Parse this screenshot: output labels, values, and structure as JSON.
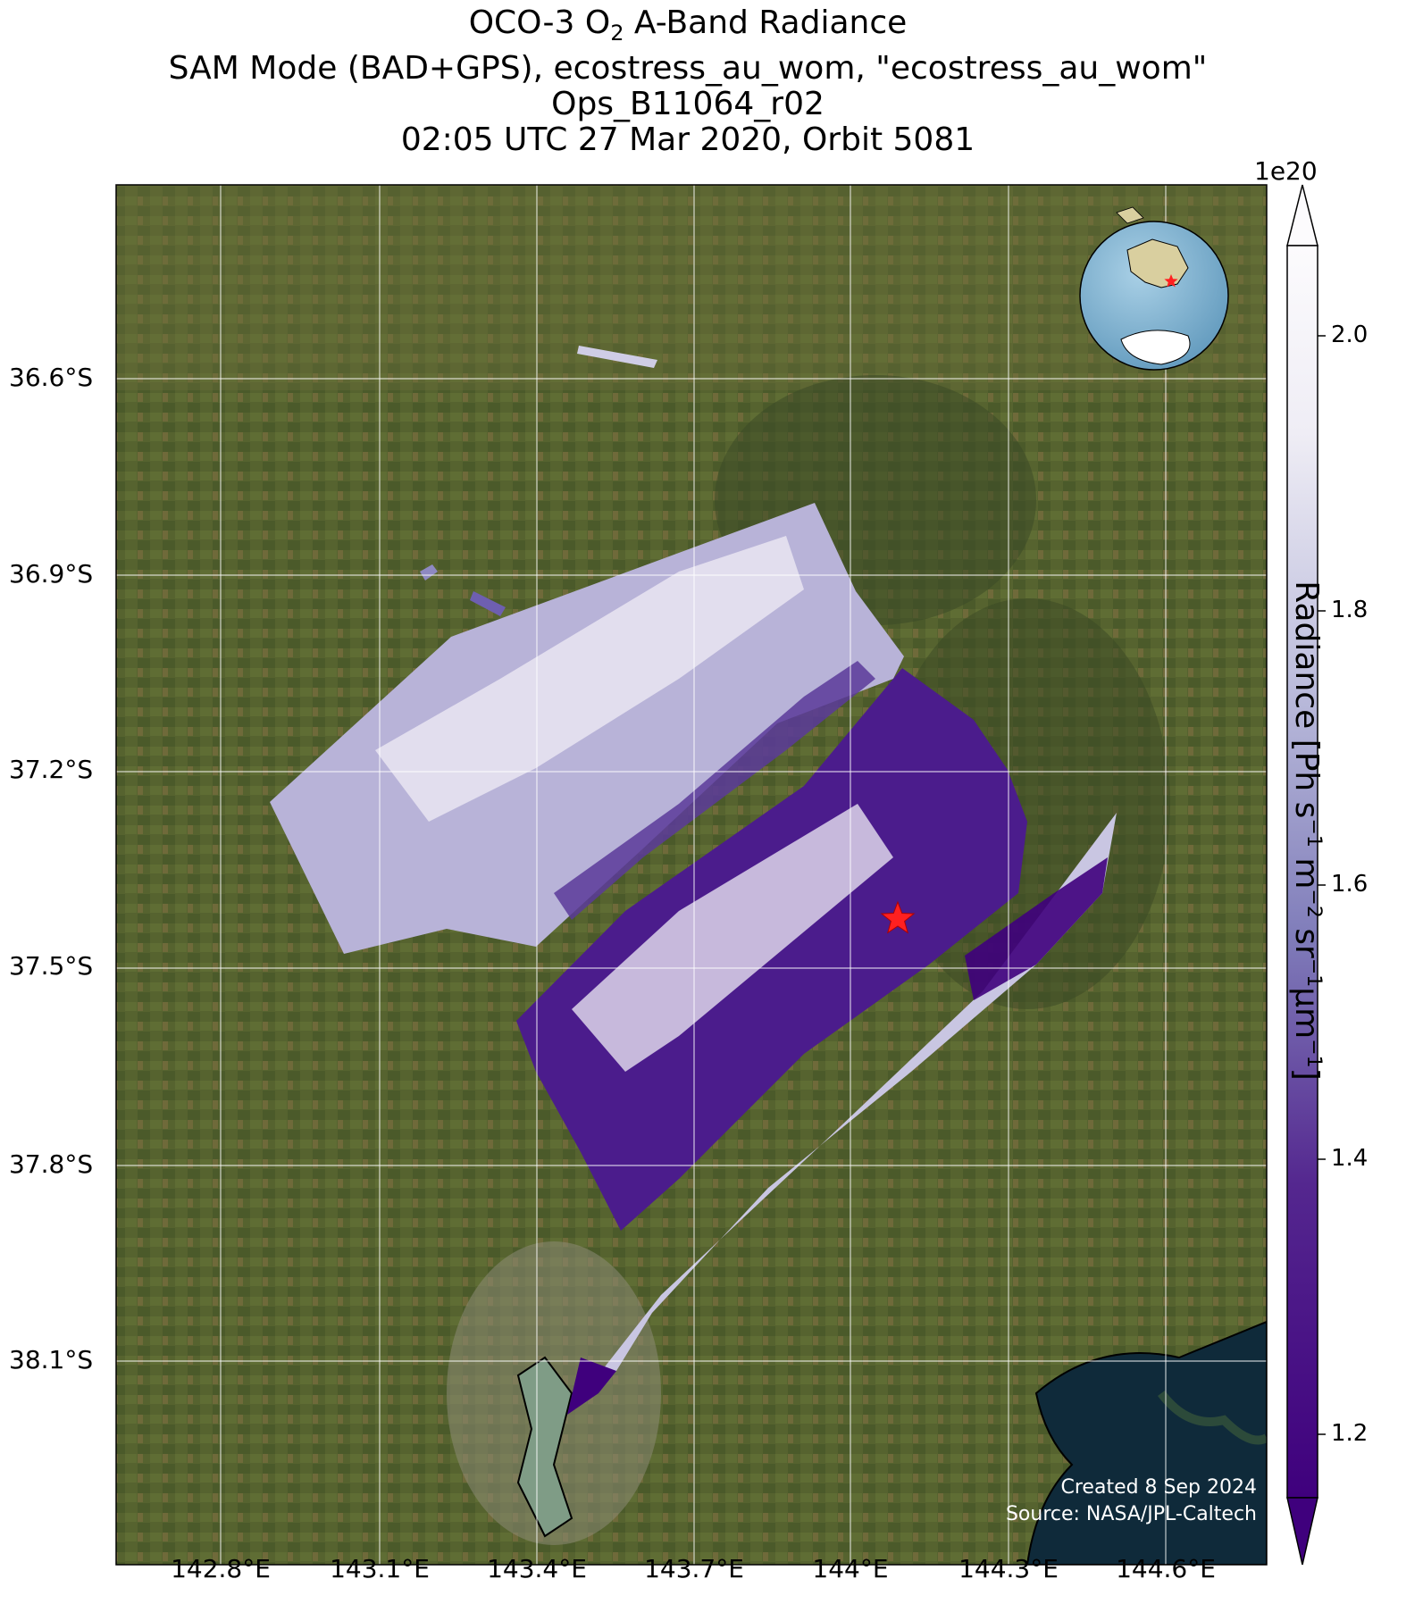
{
  "title": {
    "line1_prefix": "OCO-3 O",
    "line1_sub": "2",
    "line1_suffix": " A-Band Radiance",
    "line2": "SAM Mode (BAD+GPS), ecostress_au_wom, \"ecostress_au_wom\"",
    "line3": "Ops_B11064_r02",
    "line4": "02:05 UTC 27 Mar 2020, Orbit 5081"
  },
  "map": {
    "lat_labels": [
      "36.6°S",
      "36.9°S",
      "37.2°S",
      "37.5°S",
      "37.8°S",
      "38.1°S"
    ],
    "lon_labels": [
      "142.8°E",
      "143.1°E",
      "143.4°E",
      "143.7°E",
      "144°E",
      "144.3°E",
      "144.6°E"
    ],
    "target_marker": "red-star",
    "background": "satellite-imagery",
    "colors": {
      "land": "#4e5a2c",
      "water": "#0f2a3a",
      "target": "#ff2020"
    }
  },
  "colorbar": {
    "exponent": "1e20",
    "ticks": [
      "2.0",
      "1.8",
      "1.6",
      "1.4",
      "1.2"
    ],
    "label_main": "Radiance [Ph s",
    "label_sup1": "−1",
    "label_m": " m",
    "label_sup2": "−2",
    "label_sr": " sr",
    "label_sup3": "−1",
    "label_um": "μm",
    "label_sup4": "−1",
    "label_end": "]",
    "colormap": "Purples_r",
    "range": [
      1.12,
      2.07
    ],
    "extend": "both"
  },
  "inset": {
    "type": "globe",
    "marker": "red-star"
  },
  "credit": {
    "created": "Created 8 Sep 2024",
    "source": "Source: NASA/JPL-Caltech"
  }
}
